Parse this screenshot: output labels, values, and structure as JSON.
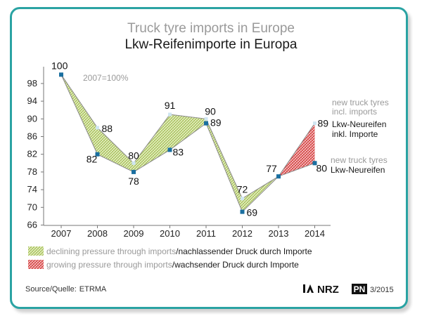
{
  "title_en": "Truck tyre imports in Europe",
  "title_de": "Lkw-Reifenimporte in Europa",
  "chart_data": {
    "type": "area",
    "categories": [
      "2007",
      "2008",
      "2009",
      "2010",
      "2011",
      "2012",
      "2013",
      "2014"
    ],
    "series": [
      {
        "name_en": "new truck tyres incl. imports",
        "name_de": "Lkw-Neureifen inkl. Importe",
        "values": [
          100,
          88,
          80,
          91,
          90,
          72,
          77,
          89
        ],
        "labels": [
          "100",
          "88",
          "80",
          "91",
          "90",
          "72",
          "77",
          "89"
        ]
      },
      {
        "name_en": "new truck tyres",
        "name_de": "Lkw-Neureifen",
        "values": [
          100,
          82,
          78,
          83,
          89,
          69,
          77,
          80
        ],
        "labels": [
          "",
          "82",
          "78",
          "83",
          "89",
          "69",
          "",
          "80"
        ]
      }
    ],
    "yticks": [
      "66",
      "70",
      "74",
      "78",
      "82",
      "86",
      "90",
      "94",
      "98"
    ],
    "ylim": [
      66,
      101
    ],
    "base_note": "2007=100%",
    "grid": false,
    "legend": [
      {
        "en": "declining pressure through imports",
        "de": "/nachlassender Druck durch Importe",
        "color": "#c9de8a"
      },
      {
        "en": "growing pressure through imports",
        "de": "/wachsender Druck durch Importe",
        "color": "#d02a2a"
      }
    ]
  },
  "source": {
    "label": "Source/Quelle:",
    "value": "ETRMA"
  },
  "logos": {
    "brand": "NRZ",
    "pn": "PN",
    "issue": "3/2015"
  }
}
